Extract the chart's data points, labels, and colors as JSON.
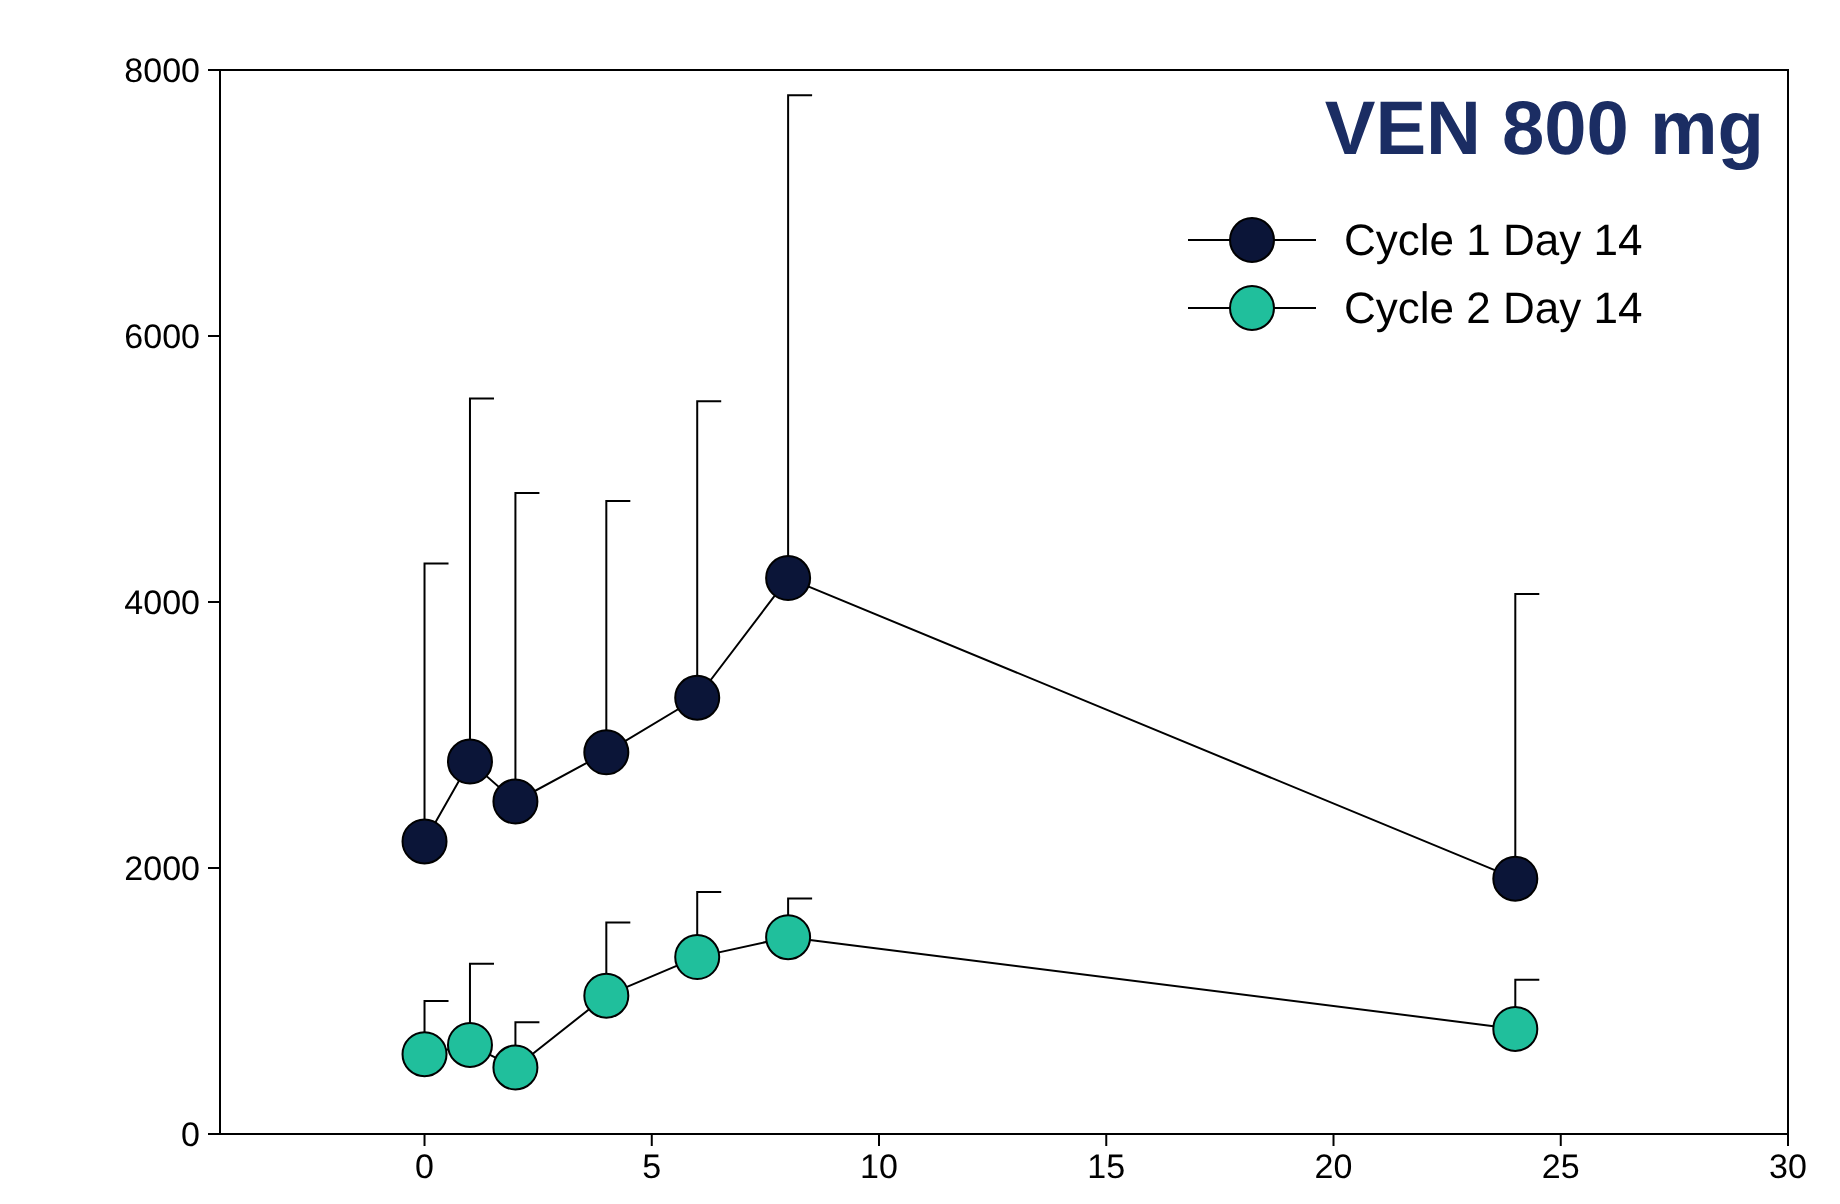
{
  "chart_data": {
    "type": "line",
    "title": "VEN 800 mg",
    "x": [
      0,
      1,
      2,
      4,
      6,
      8,
      24
    ],
    "series": [
      {
        "name": "Cycle 1 Day 14",
        "color": "#0b1538",
        "values": [
          2200,
          2800,
          2500,
          2870,
          3280,
          4180,
          1920
        ],
        "errors": [
          [
            2200,
            4290
          ],
          [
            2800,
            5530
          ],
          [
            2500,
            4820
          ],
          [
            2870,
            4760
          ],
          [
            3280,
            5510
          ],
          [
            4180,
            7810
          ],
          [
            1920,
            4060
          ]
        ]
      },
      {
        "name": "Cycle 2 Day 14",
        "color": "#20bf9c",
        "values": [
          600,
          670,
          500,
          1040,
          1330,
          1480,
          790
        ],
        "errors": [
          [
            600,
            1000
          ],
          [
            670,
            1280
          ],
          [
            500,
            840
          ],
          [
            1040,
            1590
          ],
          [
            1330,
            1820
          ],
          [
            1480,
            1770
          ],
          [
            790,
            1160
          ]
        ]
      }
    ],
    "xlim": [
      -4.5,
      30
    ],
    "xticks": [
      0,
      5,
      10,
      15,
      20,
      25,
      30
    ],
    "ylim": [
      0,
      8000
    ],
    "yticks": [
      0,
      2000,
      4000,
      6000,
      8000
    ],
    "grid": false,
    "legend": "top right",
    "marker": "circle",
    "line_style": "solid"
  }
}
